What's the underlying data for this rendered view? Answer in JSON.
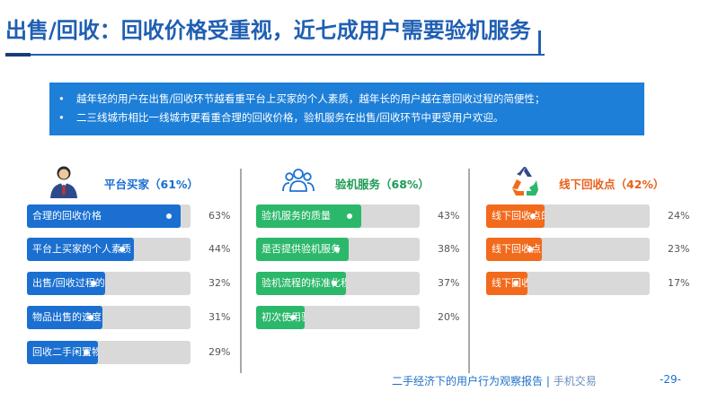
{
  "title": "出售/回收：回收价格受重视，近七成用户需要验机服务",
  "info": [
    "越年轻的用户在出售/回收环节越看重平台上买家的个人素质，越年长的用户越在意回收过程的简便性；",
    "二三线城市相比一线城市更看重合理的回收价格，验机服务在出售/回收环节中更受用户欢迎。"
  ],
  "bullet": "•",
  "columns": [
    {
      "label": "平台买家（61%）",
      "color": "#1a6fd0",
      "label_color": "#1a6fd0",
      "icon": "person-icon",
      "items": [
        {
          "label": "合理的回收价格",
          "value": 63,
          "pct_text": "63%"
        },
        {
          "label": "平台上买家的个人素质",
          "value": 44,
          "pct_text": "44%"
        },
        {
          "label": "出售/回收过程的简便性",
          "value": 32,
          "pct_text": "32%"
        },
        {
          "label": "物品出售的速度",
          "value": 31,
          "pct_text": "31%"
        },
        {
          "label": "回收二手闲置物品的种类",
          "value": 29,
          "pct_text": "29%"
        }
      ]
    },
    {
      "label": "验机服务（68%）",
      "color": "#2bb86a",
      "label_color": "#1e9a55",
      "icon": "group-icon",
      "items": [
        {
          "label": "验机服务的质量",
          "value": 43,
          "pct_text": "43%"
        },
        {
          "label": "是否提供验机服务",
          "value": 38,
          "pct_text": "38%"
        },
        {
          "label": "验机流程的标准化程度",
          "value": 37,
          "pct_text": "37%"
        },
        {
          "label": "初次使用验机服务的体验",
          "value": 20,
          "pct_text": "20%"
        }
      ]
    },
    {
      "label": "线下回收点（42%）",
      "color": "#f26a1b",
      "label_color": "#e8601a",
      "icon": "recycle-icon",
      "items": [
        {
          "label": "线下回收点的交通便利程度",
          "value": 24,
          "pct_text": "24%"
        },
        {
          "label": "线下回收点到我的距离",
          "value": 23,
          "pct_text": "23%"
        },
        {
          "label": "线下回收点的数量",
          "value": 17,
          "pct_text": "17%"
        }
      ]
    }
  ],
  "footer": {
    "report": "二手经济下的用户行为观察报告",
    "separator": "|",
    "brand": "手机交易",
    "page": "-29-"
  }
}
